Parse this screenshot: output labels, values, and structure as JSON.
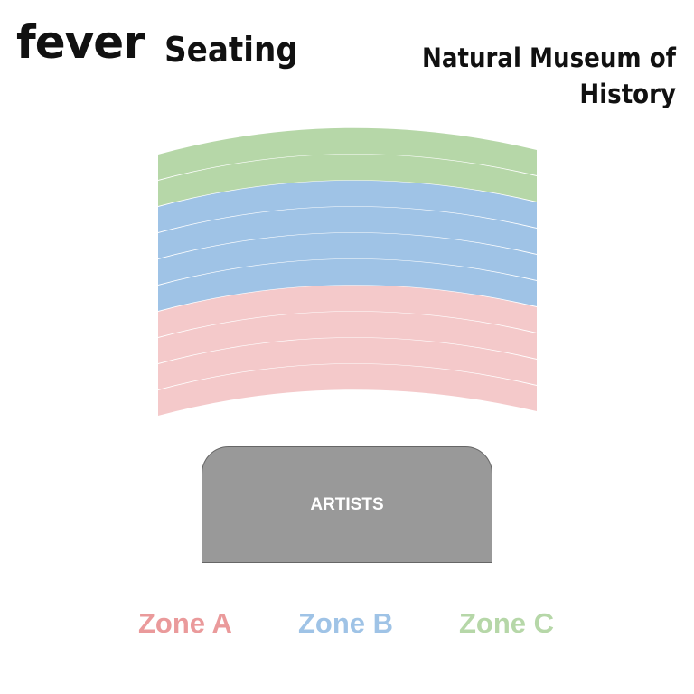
{
  "header": {
    "logo": "fever",
    "title": "Seating",
    "venue": "Natural Museum of History"
  },
  "stage": {
    "label": "ARTISTS"
  },
  "zones": [
    {
      "name": "Zone A",
      "color": "#f4c9ca",
      "label_color": "#ea9a9b",
      "rows": 4
    },
    {
      "name": "Zone B",
      "color": "#9fc3e6",
      "label_color": "#9fc3e6",
      "rows": 4
    },
    {
      "name": "Zone C",
      "color": "#b6d7a8",
      "label_color": "#b6d7a8",
      "rows": 2
    }
  ]
}
